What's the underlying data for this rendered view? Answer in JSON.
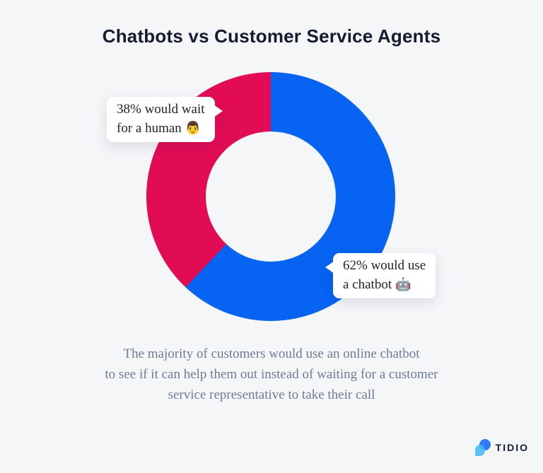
{
  "title": "Chatbots vs Customer Service Agents",
  "chart_data": {
    "type": "pie",
    "donut": true,
    "title": "Chatbots vs Customer Service Agents",
    "segments": [
      {
        "label": "would use a chatbot",
        "value": 62,
        "color": "#0763f2"
      },
      {
        "label": "would wait for a human",
        "value": 38,
        "color": "#e20c55"
      }
    ],
    "start_angle_deg": 0,
    "direction": "clockwise",
    "legend_position": "none",
    "annotations": [
      "38% would wait for a human 👨",
      "62% would use a chatbot 🤖"
    ],
    "subtitle": "The majority of customers would use an online chatbot to see if it can help them out instead of waiting for a customer service representative to take their call"
  },
  "callouts": {
    "human": {
      "line1": "38% would wait",
      "line2": "for a human",
      "emoji": "👨"
    },
    "chatbot": {
      "line1": "62% would use",
      "line2": "a chatbot",
      "emoji": "🤖"
    }
  },
  "caption": {
    "lines": [
      "The majority of customers would use an online chatbot",
      "to see if it can help them out instead of waiting for a customer",
      "service representative to take their call"
    ]
  },
  "logo": {
    "text": "TIDIO"
  },
  "colors": {
    "background": "#f5f6f8",
    "chatbot_blue": "#0763f2",
    "human_red": "#e20c55",
    "title_text": "#161b2f",
    "callout_text": "#22242c",
    "caption_text": "#6e7b97",
    "bubble_background": "#ffffff",
    "logo_text": "#141b33",
    "logo_mark_dark": "#2e7df5",
    "logo_mark_light": "#3fb9f6"
  }
}
